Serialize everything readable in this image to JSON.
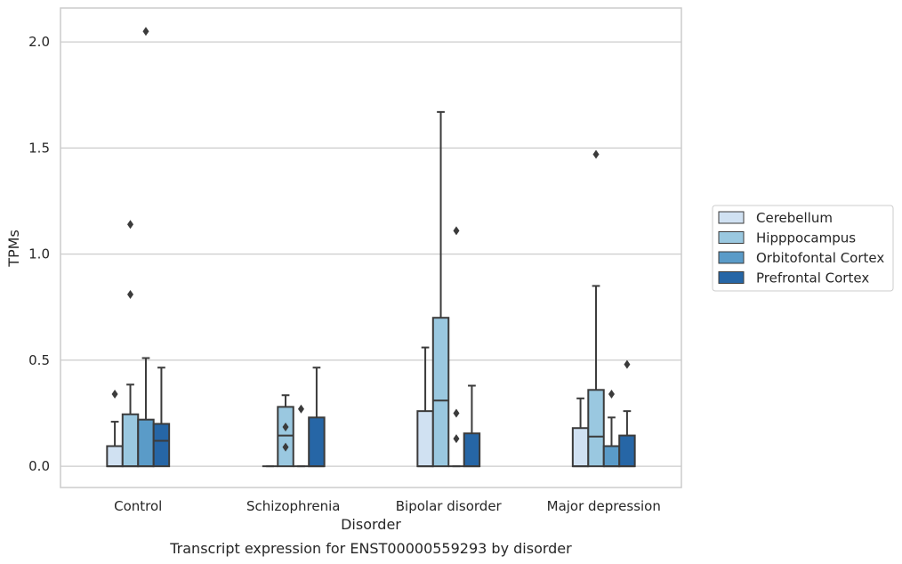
{
  "chart_data": {
    "type": "box",
    "title": "",
    "caption": "Transcript expression for ENST00000559293 by disorder",
    "xlabel": "Disorder",
    "ylabel": "TPMs",
    "ylim": [
      -0.1,
      2.16
    ],
    "yticks": [
      "0.0",
      "0.5",
      "1.0",
      "1.5",
      "2.0"
    ],
    "ytick_values": [
      0.0,
      0.5,
      1.0,
      1.5,
      2.0
    ],
    "grid": "horizontal",
    "legend_position": "right",
    "categories": [
      "Control",
      "Schizophrenia",
      "Bipolar disorder",
      "Major depression"
    ],
    "series": [
      {
        "name": "Cerebellum",
        "color": "#d0e1f2",
        "boxes": [
          {
            "q1": 0.0,
            "median": 0.0,
            "q3": 0.095,
            "whislo": 0.0,
            "whishi": 0.21,
            "fliers": [
              0.34
            ]
          },
          {
            "q1": 0.0,
            "median": 0.0,
            "q3": 0.0,
            "whislo": 0.0,
            "whishi": 0.0,
            "fliers": []
          },
          {
            "q1": 0.0,
            "median": 0.0,
            "q3": 0.26,
            "whislo": 0.0,
            "whishi": 0.56,
            "fliers": []
          },
          {
            "q1": 0.0,
            "median": 0.0,
            "q3": 0.18,
            "whislo": 0.0,
            "whishi": 0.32,
            "fliers": []
          }
        ]
      },
      {
        "name": "Hipppocampus",
        "color": "#9ac8e0",
        "boxes": [
          {
            "q1": 0.0,
            "median": 0.0,
            "q3": 0.245,
            "whislo": 0.0,
            "whishi": 0.385,
            "fliers": [
              0.81,
              1.14
            ]
          },
          {
            "q1": 0.0,
            "median": 0.145,
            "q3": 0.28,
            "whislo": 0.0,
            "whishi": 0.335,
            "fliers": [
              0.09,
              0.185
            ]
          },
          {
            "q1": 0.0,
            "median": 0.31,
            "q3": 0.7,
            "whislo": 0.0,
            "whishi": 1.67,
            "fliers": []
          },
          {
            "q1": 0.0,
            "median": 0.14,
            "q3": 0.36,
            "whislo": 0.0,
            "whishi": 0.85,
            "fliers": [
              1.47
            ]
          }
        ]
      },
      {
        "name": "Orbitofontal Cortex",
        "color": "#5a9bc8",
        "boxes": [
          {
            "q1": 0.0,
            "median": 0.0,
            "q3": 0.22,
            "whislo": 0.0,
            "whishi": 0.51,
            "fliers": [
              2.05
            ]
          },
          {
            "q1": 0.0,
            "median": 0.0,
            "q3": 0.0,
            "whislo": 0.0,
            "whishi": 0.0,
            "fliers": [
              0.27
            ]
          },
          {
            "q1": 0.0,
            "median": 0.0,
            "q3": 0.0,
            "whislo": 0.0,
            "whishi": 0.0,
            "fliers": [
              0.13,
              0.25,
              1.11
            ]
          },
          {
            "q1": 0.0,
            "median": 0.0,
            "q3": 0.095,
            "whislo": 0.0,
            "whishi": 0.23,
            "fliers": [
              0.34
            ]
          }
        ]
      },
      {
        "name": "Prefrontal Cortex",
        "color": "#2666a6",
        "boxes": [
          {
            "q1": 0.0,
            "median": 0.12,
            "q3": 0.2,
            "whislo": 0.0,
            "whishi": 0.465,
            "fliers": []
          },
          {
            "q1": 0.0,
            "median": 0.0,
            "q3": 0.23,
            "whislo": 0.0,
            "whishi": 0.465,
            "fliers": []
          },
          {
            "q1": 0.0,
            "median": 0.0,
            "q3": 0.155,
            "whislo": 0.0,
            "whishi": 0.38,
            "fliers": []
          },
          {
            "q1": 0.0,
            "median": 0.0,
            "q3": 0.145,
            "whislo": 0.0,
            "whishi": 0.26,
            "fliers": [
              0.48
            ]
          }
        ]
      }
    ]
  }
}
